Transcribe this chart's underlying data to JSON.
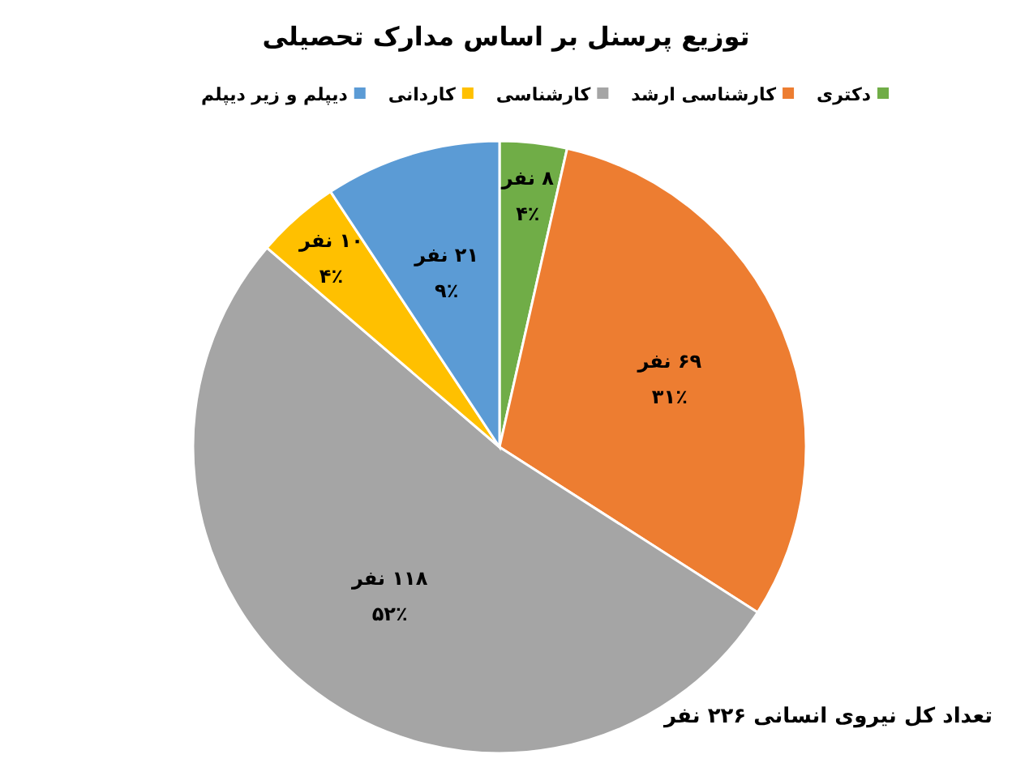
{
  "chart_data": {
    "type": "pie",
    "title": "توزیع پرسنل بر اساس مدارک تحصیلی",
    "categories": [
      "دکتری",
      "کارشناسی ارشد",
      "کارشناسی",
      "کاردانی",
      "دیپلم و زیر دیپلم"
    ],
    "values": [
      8,
      69,
      118,
      10,
      21
    ],
    "colors": [
      "#70ad47",
      "#ed7d31",
      "#a5a5a5",
      "#ffc000",
      "#5b9bd5"
    ],
    "value_labels": [
      "۸ نفر\n۴٪",
      "۶۹ نفر\n۳۱٪",
      "۱۱۸ نفر\n۵۲٪",
      "۱۰ نفر\n۴٪",
      "۲۱ نفر\n۹٪"
    ],
    "legend": "top",
    "annotations": [
      "تعداد کل نیروی انسانی ۲۲۶ نفر"
    ]
  }
}
